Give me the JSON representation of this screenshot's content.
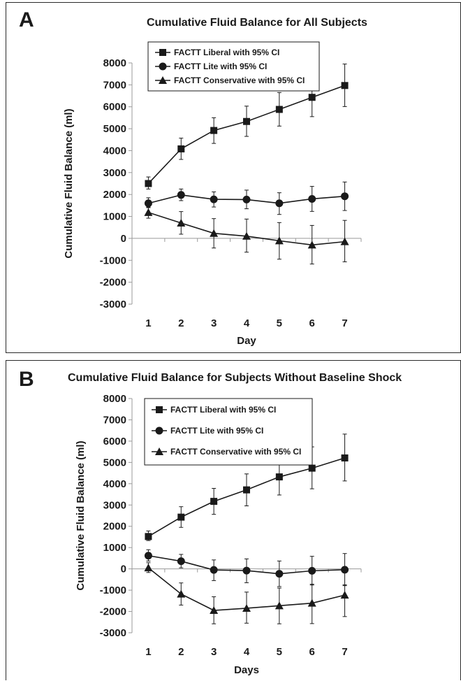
{
  "chart_data": [
    {
      "panel_letter": "A",
      "type": "line",
      "title": "Cumulative Fluid Balance for All Subjects",
      "xlabel": "Day",
      "ylabel": "Cumulative Fluid Balance (ml)",
      "x": [
        1,
        2,
        3,
        4,
        5,
        6,
        7
      ],
      "ylim": [
        -3000,
        8000
      ],
      "yticks": [
        8000,
        7000,
        6000,
        5000,
        4000,
        3000,
        2000,
        1000,
        0,
        -1000,
        -2000,
        -3000
      ],
      "legend_position": "top-left",
      "series": [
        {
          "name": "FACTT Liberal with 95% CI",
          "marker": "square",
          "values": [
            2500,
            4080,
            4920,
            5330,
            5880,
            6430,
            6970
          ],
          "ci_low": [
            2250,
            3600,
            4330,
            4650,
            5120,
            5550,
            6010
          ],
          "ci_high": [
            2800,
            4570,
            5500,
            6030,
            6650,
            7300,
            7950
          ]
        },
        {
          "name": "FACTT Lite with 95% CI",
          "marker": "circle",
          "values": [
            1600,
            1980,
            1780,
            1770,
            1600,
            1800,
            1920
          ],
          "ci_low": [
            1400,
            1720,
            1430,
            1350,
            1090,
            1230,
            1270
          ],
          "ci_high": [
            1850,
            2250,
            2120,
            2200,
            2080,
            2370,
            2570
          ]
        },
        {
          "name": "FACTT Conservative with 95% CI",
          "marker": "triangle",
          "values": [
            1180,
            700,
            230,
            100,
            -110,
            -300,
            -150
          ],
          "ci_low": [
            920,
            190,
            -440,
            -630,
            -950,
            -1170,
            -1070
          ],
          "ci_high": [
            1430,
            1220,
            900,
            880,
            720,
            590,
            820
          ]
        }
      ]
    },
    {
      "panel_letter": "B",
      "type": "line",
      "title": "Cumulative Fluid Balance for Subjects Without Baseline Shock",
      "xlabel": "Days",
      "ylabel": "Cumulative Fluid Balance (ml)",
      "x": [
        1,
        2,
        3,
        4,
        5,
        6,
        7
      ],
      "ylim": [
        -3000,
        8000
      ],
      "yticks": [
        8000,
        7000,
        6000,
        5000,
        4000,
        3000,
        2000,
        1000,
        0,
        -1000,
        -2000,
        -3000
      ],
      "legend_position": "top-left",
      "series": [
        {
          "name": "FACTT Liberal with 95% CI",
          "marker": "square",
          "values": [
            1520,
            2430,
            3170,
            3710,
            4320,
            4730,
            5210
          ],
          "ci_low": [
            1330,
            1950,
            2560,
            2960,
            3470,
            3760,
            4130
          ],
          "ci_high": [
            1780,
            2920,
            3780,
            4460,
            5170,
            5730,
            6330
          ]
        },
        {
          "name": "FACTT Lite with 95% CI",
          "marker": "circle",
          "values": [
            620,
            360,
            -50,
            -80,
            -230,
            -90,
            -40
          ],
          "ci_low": [
            370,
            50,
            -550,
            -650,
            -830,
            -760,
            -790
          ],
          "ci_high": [
            900,
            680,
            420,
            470,
            370,
            590,
            720
          ]
        },
        {
          "name": "FACTT Conservative with 95% CI",
          "marker": "triangle",
          "values": [
            50,
            -1180,
            -1950,
            -1850,
            -1730,
            -1610,
            -1230
          ],
          "ci_low": [
            -170,
            -1700,
            -2580,
            -2550,
            -2580,
            -2570,
            -2240
          ],
          "ci_high": [
            290,
            -660,
            -1310,
            -1090,
            -900,
            -720,
            -750
          ]
        }
      ]
    }
  ]
}
